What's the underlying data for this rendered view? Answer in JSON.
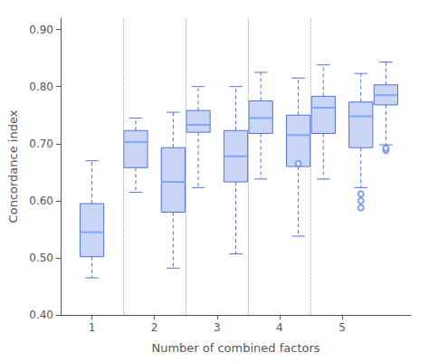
{
  "chart_data": {
    "type": "boxplot",
    "xlabel": "Number of combined factors",
    "ylabel": "Concordance index",
    "xlim": [
      0.5,
      6.1
    ],
    "xticks": [
      1,
      2,
      3,
      4,
      5
    ],
    "ylim": [
      0.4,
      0.92
    ],
    "yticks": [
      {
        "value": 0.4,
        "label": "0.40"
      },
      {
        "value": 0.5,
        "label": "0.50"
      },
      {
        "value": 0.6,
        "label": "0.60"
      },
      {
        "value": 0.7,
        "label": "0.70"
      },
      {
        "value": 0.8,
        "label": "0.80"
      },
      {
        "value": 0.9,
        "label": "0.90"
      }
    ],
    "marker": "circle",
    "line_style": "dashed",
    "vlines": [
      1.5,
      2.5,
      3.5,
      4.5
    ],
    "boxes": {
      "x": [
        1.0,
        1.7,
        2.3,
        2.7,
        3.3,
        3.7,
        4.3,
        4.7,
        5.3,
        5.7
      ],
      "whisker_low": [
        0.465,
        0.615,
        0.482,
        0.623,
        0.507,
        0.638,
        0.538,
        0.638,
        0.623,
        0.698
      ],
      "q1": [
        0.502,
        0.658,
        0.58,
        0.72,
        0.633,
        0.718,
        0.66,
        0.718,
        0.693,
        0.768
      ],
      "median": [
        0.545,
        0.703,
        0.633,
        0.733,
        0.678,
        0.745,
        0.715,
        0.763,
        0.748,
        0.785
      ],
      "q3": [
        0.595,
        0.723,
        0.693,
        0.758,
        0.723,
        0.775,
        0.75,
        0.783,
        0.773,
        0.803
      ],
      "whisker_high": [
        0.67,
        0.745,
        0.755,
        0.8,
        0.8,
        0.825,
        0.815,
        0.838,
        0.823,
        0.843
      ],
      "fliers": [
        [],
        [],
        [],
        [],
        [],
        [],
        [
          0.665
        ],
        [],
        [
          0.588,
          0.6,
          0.612
        ],
        [
          0.688,
          0.692
        ]
      ]
    }
  }
}
